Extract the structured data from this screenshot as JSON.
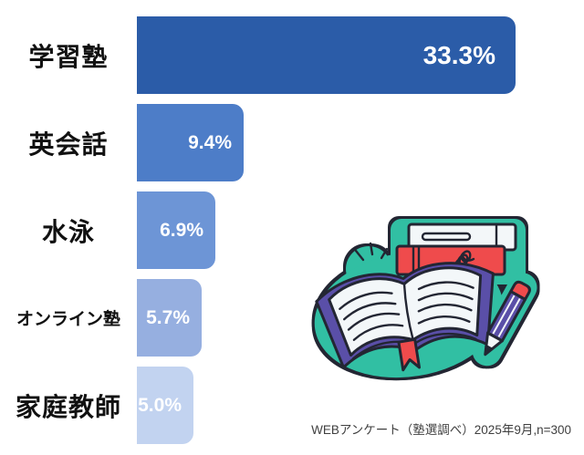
{
  "caption": "WEBアンケート（塾選調べ）2025年9月,n=300",
  "chart_data": {
    "type": "bar",
    "orientation": "horizontal",
    "title": "",
    "categories": [
      "学習塾",
      "英会話",
      "水泳",
      "オンライン塾",
      "家庭教師"
    ],
    "values": [
      33.3,
      9.4,
      6.9,
      5.7,
      5.0
    ],
    "value_labels": [
      "33.3%",
      "9.4%",
      "6.9%",
      "5.7%",
      "5.0%"
    ],
    "unit": "%",
    "xlim": [
      0,
      33.3
    ],
    "grid": false,
    "legend": false,
    "bar_colors": [
      "#2B5CA8",
      "#4D7DC8",
      "#6D95D6",
      "#96AFE0",
      "#C2D3F0"
    ],
    "value_label_color": "#FFFFFF",
    "category_label_color": "#111111",
    "source_note": "WEBアンケート（塾選調べ）2025年9月,n=300"
  },
  "illustration": {
    "name": "books-and-pencil-sticker",
    "colors": {
      "teal": "#31BFA3",
      "purple": "#5A4FA8",
      "red": "#EF4B4C",
      "paper": "#F3F7F9",
      "outline": "#232633"
    }
  }
}
